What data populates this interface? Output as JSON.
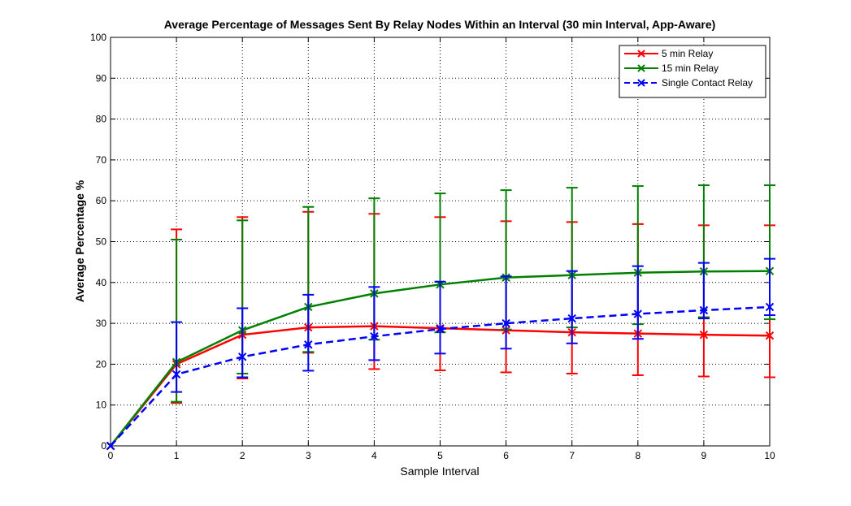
{
  "chart_data": {
    "type": "line",
    "title": "Average Percentage of Messages Sent By Relay Nodes Within an Interval (30 min Interval, App-Aware)",
    "xlabel": "Sample Interval",
    "ylabel": "Average Percentage %",
    "xlim": [
      0,
      10
    ],
    "ylim": [
      0,
      100
    ],
    "xticks": [
      0,
      1,
      2,
      3,
      4,
      5,
      6,
      7,
      8,
      9,
      10
    ],
    "yticks": [
      0,
      10,
      20,
      30,
      40,
      50,
      60,
      70,
      80,
      90,
      100
    ],
    "grid": true,
    "legend_position": "top-right",
    "x": [
      0,
      1,
      2,
      3,
      4,
      5,
      6,
      7,
      8,
      9,
      10
    ],
    "series": [
      {
        "name": "5 min Relay",
        "color": "#ff0000",
        "dash": "solid",
        "marker": "x",
        "values": [
          0,
          20.0,
          27.2,
          29.0,
          29.3,
          28.8,
          28.3,
          27.8,
          27.5,
          27.2,
          27.0
        ],
        "error_low": [
          0,
          10.5,
          16.5,
          22.8,
          18.8,
          18.5,
          18.0,
          17.7,
          17.3,
          17.0,
          16.8
        ],
        "error_high": [
          0,
          53.0,
          56.0,
          57.3,
          56.8,
          56.0,
          55.0,
          54.8,
          54.3,
          54.0,
          54.0
        ]
      },
      {
        "name": "15 min Relay",
        "color": "#008000",
        "dash": "solid",
        "marker": "x",
        "values": [
          0,
          20.5,
          28.3,
          34.0,
          37.3,
          39.5,
          41.2,
          41.8,
          42.4,
          42.7,
          42.8
        ],
        "error_low": [
          0,
          10.8,
          17.7,
          23.0,
          26.0,
          27.8,
          28.5,
          29.0,
          29.8,
          31.5,
          31.0
        ],
        "error_high": [
          0,
          50.5,
          55.2,
          58.5,
          60.6,
          61.8,
          62.6,
          63.2,
          63.6,
          63.8,
          63.8
        ]
      },
      {
        "name": "Single Contact Relay",
        "color": "#0000ff",
        "dash": "dashed",
        "marker": "x",
        "values": [
          0,
          17.5,
          21.8,
          24.8,
          26.8,
          28.6,
          30.0,
          31.2,
          32.3,
          33.2,
          34.0
        ],
        "error_low": [
          0,
          13.2,
          16.8,
          18.4,
          21.0,
          22.6,
          23.8,
          25.1,
          26.2,
          31.2,
          32.0
        ],
        "error_high": [
          0,
          30.3,
          33.7,
          37.0,
          38.9,
          40.2,
          41.5,
          42.8,
          44.0,
          44.8,
          45.8
        ]
      }
    ]
  }
}
